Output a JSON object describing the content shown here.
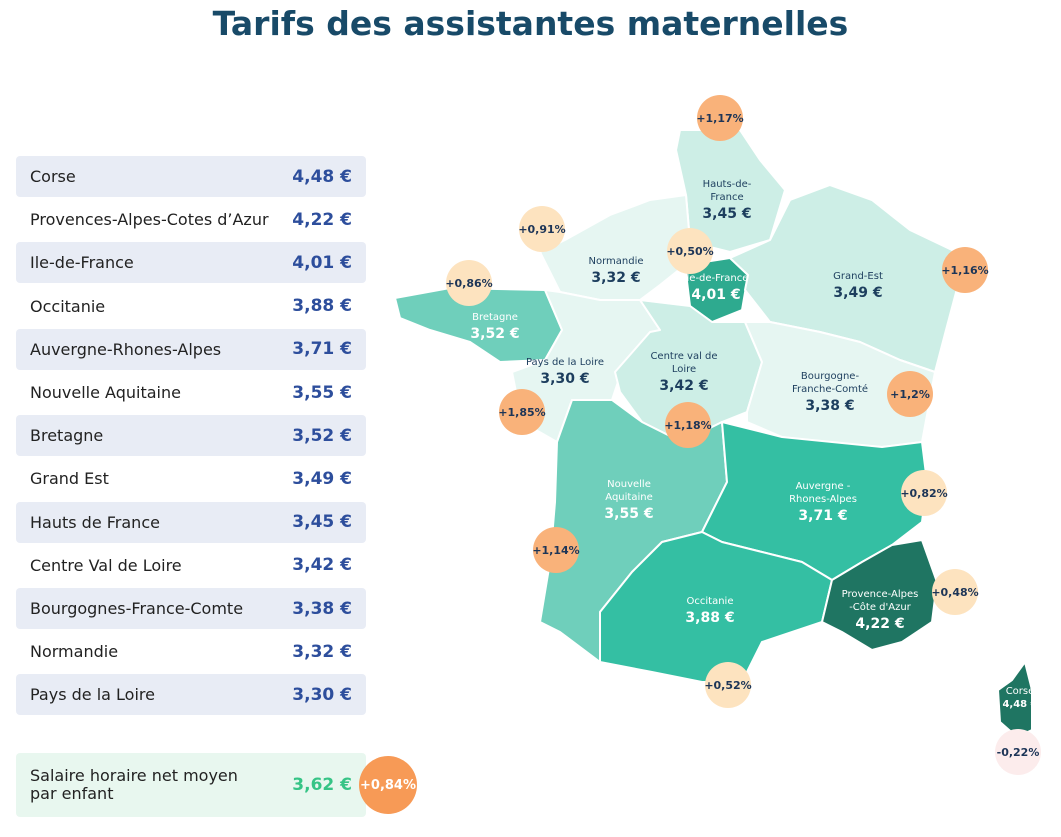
{
  "title": "Tarifs des assistantes maternelles",
  "list": [
    {
      "name": "Corse",
      "value": "4,48 €"
    },
    {
      "name": "Provences-Alpes-Cotes d’Azur",
      "value": "4,22 €"
    },
    {
      "name": "Ile-de-France",
      "value": "4,01 €"
    },
    {
      "name": "Occitanie",
      "value": "3,88 €"
    },
    {
      "name": "Auvergne-Rhones-Alpes",
      "value": "3,71 €"
    },
    {
      "name": "Nouvelle Aquitaine",
      "value": "3,55 €"
    },
    {
      "name": "Bretagne",
      "value": "3,52 €"
    },
    {
      "name": "Grand Est",
      "value": "3,49 €"
    },
    {
      "name": "Hauts de France",
      "value": "3,45 €"
    },
    {
      "name": "Centre Val de Loire",
      "value": "3,42 €"
    },
    {
      "name": "Bourgognes-France-Comte",
      "value": "3,38 €"
    },
    {
      "name": "Normandie",
      "value": "3,32 €"
    },
    {
      "name": "Pays de la Loire",
      "value": "3,30 €"
    }
  ],
  "average": {
    "label": "Salaire horaire net moyen par enfant",
    "value": "3,62 €",
    "change": "+0,84%"
  },
  "colors": {
    "title": "#184a68",
    "value": "#2d4e9c",
    "average_value": "#36c486",
    "badge_high": "#f9b27a",
    "badge_low": "#fde3bf",
    "badge_negative": "#fcecec",
    "badge_average": "#f79a56"
  },
  "map": {
    "regions": [
      {
        "id": "hdf",
        "name": "Hauts-de-\nFrance",
        "price": "3,45 €",
        "change": "+1,17%",
        "color": "#cdeee6"
      },
      {
        "id": "nor",
        "name": "Normandie",
        "price": "3,32 €",
        "change": "+0,91%",
        "color": "#e6f6f2"
      },
      {
        "id": "idf",
        "name": "Ile-de-France",
        "price": "4,01 €",
        "change": "+0,50%",
        "color": "#2eaa8f"
      },
      {
        "id": "ge",
        "name": "Grand-Est",
        "price": "3,49 €",
        "change": "+1,16%",
        "color": "#cdeee6"
      },
      {
        "id": "bre",
        "name": "Bretagne",
        "price": "3,52 €",
        "change": "+0,86%",
        "color": "#6fcfbb"
      },
      {
        "id": "pdl",
        "name": "Pays de la Loire",
        "price": "3,30 €",
        "change": "+1,85%",
        "color": "#e6f6f2"
      },
      {
        "id": "cvl",
        "name": "Centre val de\nLoire",
        "price": "3,42 €",
        "change": "+1,18%",
        "color": "#cdeee6"
      },
      {
        "id": "bfc",
        "name": "Bourgogne-\nFranche-Comté",
        "price": "3,38 €",
        "change": "+1,2%",
        "color": "#e6f6f2"
      },
      {
        "id": "na",
        "name": "Nouvelle\nAquitaine",
        "price": "3,55 €",
        "change": "+1,14%",
        "color": "#6fcfbb"
      },
      {
        "id": "ara",
        "name": "Auvergne -\nRhones-Alpes",
        "price": "3,71 €",
        "change": "+0,82%",
        "color": "#34bfa3"
      },
      {
        "id": "occ",
        "name": "Occitanie",
        "price": "3,88 €",
        "change": "+0,52%",
        "color": "#34bfa3"
      },
      {
        "id": "paca",
        "name": "Provence-Alpes\n-Côte d'Azur",
        "price": "4,22 €",
        "change": "+0,48%",
        "color": "#1f7562"
      },
      {
        "id": "cor",
        "name": "Corse",
        "price": "4,48 €",
        "change": "-0,22%",
        "color": "#1f7562"
      }
    ]
  }
}
